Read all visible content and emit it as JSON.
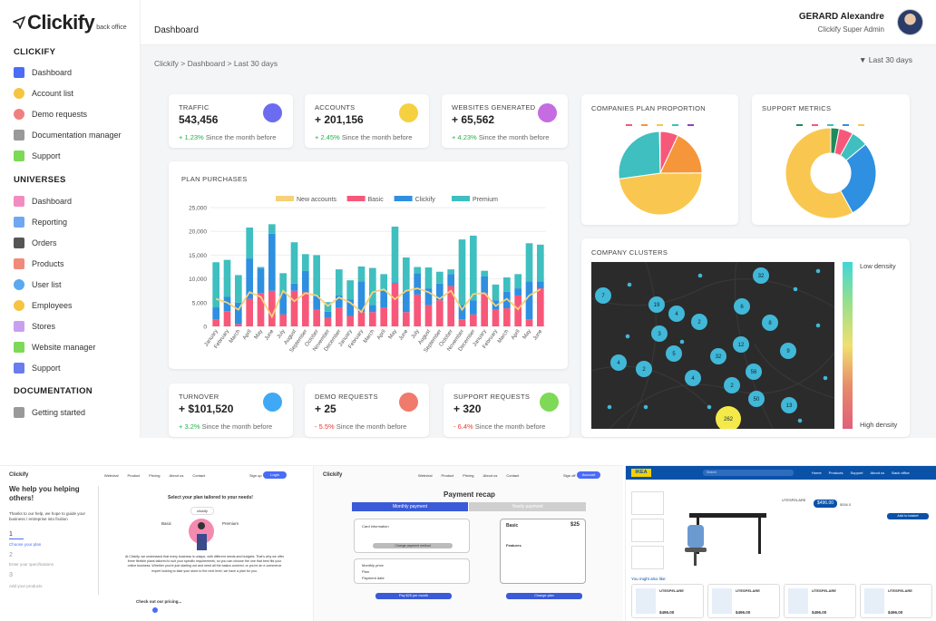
{
  "app": {
    "logo": "Clickify",
    "logo_sub": "back office"
  },
  "sidebar": {
    "section1": "CLICKIFY",
    "items1": [
      {
        "label": "Dashboard",
        "icon": "grid-icon",
        "color": "#4a6cf7"
      },
      {
        "label": "Account list",
        "icon": "user-icon",
        "color": "#f5c542"
      },
      {
        "label": "Demo requests",
        "icon": "headset-icon",
        "color": "#f08080"
      },
      {
        "label": "Documentation manager",
        "icon": "document-icon",
        "color": "#999999"
      },
      {
        "label": "Support",
        "icon": "chat-icon",
        "color": "#7ed957"
      }
    ],
    "section2": "UNIVERSES",
    "items2": [
      {
        "label": "Dashboard",
        "icon": "grid-icon",
        "color": "#f28cc0"
      },
      {
        "label": "Reporting",
        "icon": "chart-icon",
        "color": "#6fa8f0"
      },
      {
        "label": "Orders",
        "icon": "cart-icon",
        "color": "#555555"
      },
      {
        "label": "Products",
        "icon": "box-icon",
        "color": "#f08a7a"
      },
      {
        "label": "User list",
        "icon": "users-icon",
        "color": "#5aa9f0"
      },
      {
        "label": "Employees",
        "icon": "employee-icon",
        "color": "#f5c542"
      },
      {
        "label": "Stores",
        "icon": "store-icon",
        "color": "#c9a0f0"
      },
      {
        "label": "Website manager",
        "icon": "sliders-icon",
        "color": "#7ed957"
      },
      {
        "label": "Support",
        "icon": "chat-icon",
        "color": "#6a7cf0"
      }
    ],
    "section3": "DOCUMENTATION",
    "items3": [
      {
        "label": "Getting started",
        "icon": "document-icon",
        "color": "#999999"
      }
    ]
  },
  "header": {
    "title": "Dashboard",
    "user_name": "GERARD Alexandre",
    "user_role": "Clickify Super Admin"
  },
  "breadcrumb": "Clickify > Dashboard > Last 30 days",
  "filter": "Last 30 days",
  "kpis": [
    {
      "label": "TRAFFIC",
      "value": "543,456",
      "change": "+ 1.23%",
      "suffix": "Since the month before",
      "dir": "up",
      "icon": "eye-icon",
      "color": "#6c6cf0"
    },
    {
      "label": "ACCOUNTS",
      "value": "+ 201,156",
      "change": "+ 2.45%",
      "suffix": "Since the month before",
      "dir": "up",
      "icon": "user-icon",
      "color": "#f5d142"
    },
    {
      "label": "WEBSITES GENERATED",
      "value": "+ 65,562",
      "change": "+ 4.23%",
      "suffix": "Since the month before",
      "dir": "up",
      "icon": "cart-icon",
      "color": "#c56ce0"
    },
    {
      "label": "TURNOVER",
      "value": "+ $101,520",
      "change": "+ 3.2%",
      "suffix": "Since the month before",
      "dir": "up",
      "icon": "folder-icon",
      "color": "#3fa9f5"
    },
    {
      "label": "DEMO REQUESTS",
      "value": "+ 25",
      "change": "- 5.5%",
      "suffix": "Since the month before",
      "dir": "down",
      "icon": "headset-icon",
      "color": "#f07a6c"
    },
    {
      "label": "SUPPORT REQUESTS",
      "value": "+ 320",
      "change": "- 6.4%",
      "suffix": "Since the month before",
      "dir": "down",
      "icon": "chat-icon",
      "color": "#7ed957"
    }
  ],
  "chart_data": [
    {
      "type": "bar",
      "title": "PLAN PURCHASES",
      "categories": [
        "January",
        "February",
        "March",
        "April",
        "May",
        "June",
        "July",
        "August",
        "September",
        "October",
        "November",
        "December",
        "January",
        "February",
        "March",
        "April",
        "May",
        "June",
        "July",
        "August",
        "September",
        "October",
        "November",
        "December",
        "January",
        "February",
        "March",
        "April",
        "May",
        "June"
      ],
      "ylim": [
        0,
        25000
      ],
      "yticks": [
        "0",
        "5,000",
        "10,000",
        "15,000",
        "20,000",
        "25,000"
      ],
      "series": [
        {
          "name": "New accounts",
          "color": "#f5d27a",
          "type": "line",
          "values": [
            5800,
            5000,
            3500,
            7200,
            6200,
            2000,
            7500,
            5300,
            7000,
            6500,
            4300,
            6100,
            5000,
            3000,
            7200,
            7800,
            5700,
            7500,
            8000,
            7200,
            5800,
            7500,
            3500,
            6800,
            7000,
            4300,
            5800,
            3600,
            6500,
            7800
          ]
        },
        {
          "name": "Basic",
          "color": "#f7587a",
          "values": [
            1500,
            3200,
            500,
            5800,
            7000,
            7500,
            2500,
            7500,
            7200,
            3500,
            1800,
            4000,
            2200,
            3000,
            3000,
            4000,
            9000,
            3000,
            6700,
            4500,
            5500,
            8500,
            1500,
            2500,
            7000,
            3500,
            3800,
            6500,
            1500,
            8000
          ]
        },
        {
          "name": "Clickify",
          "color": "#2f8fe0",
          "values": [
            2500,
            3000,
            4500,
            8500,
            5200,
            12000,
            4500,
            1500,
            4500,
            3000,
            1300,
            2500,
            3500,
            6500,
            1500,
            3500,
            300,
            4500,
            4500,
            3500,
            3500,
            2500,
            3000,
            3000,
            3500,
            2000,
            3500,
            1500,
            8000,
            1500
          ]
        },
        {
          "name": "Premium",
          "color": "#3fbfbf",
          "values": [
            9500,
            7800,
            5800,
            6500,
            300,
            2000,
            4200,
            8700,
            3500,
            8500,
            2000,
            5500,
            4000,
            3100,
            7800,
            3500,
            11700,
            7000,
            1300,
            4400,
            2500,
            1000,
            13800,
            13600,
            1200,
            3300,
            3000,
            3000,
            8000,
            7700
          ]
        }
      ]
    },
    {
      "type": "pie",
      "title": "COMPANIES PLAN PROPORTION",
      "labels": [
        "",
        "",
        "",
        "",
        ""
      ],
      "colors": [
        "#f7587a",
        "#f5963a",
        "#f9c74f",
        "#3fbfbf",
        "#8e44ad"
      ],
      "values": [
        7,
        18,
        48,
        27,
        0.3
      ]
    },
    {
      "type": "pie",
      "title": "SUPPORT METRICS",
      "labels": [
        "",
        "",
        "",
        "",
        ""
      ],
      "colors": [
        "#1f8a5c",
        "#f7587a",
        "#3fbfbf",
        "#2f8fe0",
        "#f9c74f"
      ],
      "values": [
        3,
        5,
        6,
        28,
        58
      ]
    }
  ],
  "clusters": {
    "title": "COMPANY CLUSTERS",
    "legend_low": "Low density",
    "legend_high": "High density",
    "markers": [
      "32",
      "7",
      "19",
      "4",
      "2",
      "6",
      "8",
      "3",
      "5",
      "12",
      "32",
      "9",
      "4",
      "2",
      "56",
      "4",
      "2",
      "50",
      "13",
      "262"
    ]
  },
  "thumb1": {
    "logo": "Clickify",
    "nav": [
      "Webviral",
      "Product",
      "Pricing",
      "About us",
      "Contact"
    ],
    "signup": "Sign up",
    "login": "Login",
    "headline": "We help you helping others!",
    "intro": "Thanks to our help, we hope to guide your business / entreprise into fruition",
    "step1_num": "1",
    "step1": "Choose your plan",
    "step2_num": "2",
    "step2": "Enter your specifications",
    "step3_num": "3",
    "step3": "Add your products",
    "plan_title": "Select your plan tailored to your needs!",
    "plan_basic": "Basic",
    "plan_premium": "Premium",
    "plan_mid": "clickify",
    "body": "At Clickify, we understand that every business is unique, with different needs and budgets. That's why we offer three flexible plans tailored to suit your specific requirements, so you can choose the one that best fits your online business. Whether you're just starting out and need all the basics covered, or you're an e-commerce expert looking to take your store to the next level, we have a plan for you.",
    "cta": "Check out our pricing..."
  },
  "thumb2": {
    "logo": "Clickify",
    "nav": [
      "Webviral",
      "Product",
      "Pricing",
      "About us",
      "Contact"
    ],
    "signoff": "Sign off",
    "account": "Account",
    "title": "Payment recap",
    "tab_monthly": "Monthly payment",
    "tab_yearly": "Yearly payment",
    "card_info": "Card information",
    "change_method": "Change payment method",
    "monthly_price": "Monthly price",
    "plan": "Plan",
    "payment_date": "Payment date",
    "plan_name": "Basic",
    "price": "$25",
    "features": "Features",
    "pay": "Pay $25 per month",
    "change_plan": "Change plan"
  },
  "thumb3": {
    "logo": "IKEA",
    "search": "Search",
    "nav": [
      "Home",
      "Products",
      "Support",
      "About us",
      "Back office"
    ],
    "product": "UTESPELARE",
    "price": "$496.00",
    "price_old": "$556.5",
    "add_to_cart": "Add to basket",
    "also_like": "You might also like:",
    "related": [
      {
        "name": "UTESPELARE",
        "price": "$496.00"
      },
      {
        "name": "UTESPELARE",
        "price": "$496.00"
      },
      {
        "name": "UTESPELARE",
        "price": "$496.00"
      },
      {
        "name": "UTESPELARE",
        "price": "$496.00"
      }
    ]
  }
}
